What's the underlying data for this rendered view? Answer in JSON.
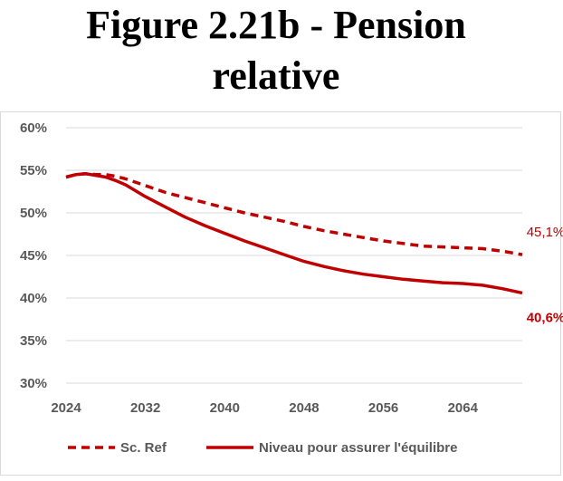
{
  "title": {
    "line1": "Figure 2.21b - Pension",
    "line2": "relative"
  },
  "chart_data": {
    "type": "line",
    "title": "Figure 2.21b - Pension relative",
    "xlabel": "",
    "ylabel": "",
    "xlim": [
      2024,
      2070
    ],
    "ylim": [
      30,
      60
    ],
    "x_ticks": [
      2024,
      2032,
      2040,
      2048,
      2056,
      2064
    ],
    "x_tick_labels": [
      "2024",
      "2032",
      "2040",
      "2048",
      "2056",
      "2064"
    ],
    "y_ticks": [
      30,
      35,
      40,
      45,
      50,
      55,
      60
    ],
    "y_tick_labels": [
      "30%",
      "35%",
      "40%",
      "45%",
      "50%",
      "55%",
      "60%"
    ],
    "legend_position": "bottom",
    "series": [
      {
        "name": "Sc. Ref",
        "style": "dashed",
        "color": "#c00000",
        "end_label": "45,1%",
        "x": [
          2024,
          2025,
          2026,
          2027,
          2028,
          2029,
          2030,
          2032,
          2034,
          2036,
          2038,
          2040,
          2042,
          2044,
          2046,
          2048,
          2050,
          2052,
          2054,
          2056,
          2058,
          2060,
          2062,
          2064,
          2066,
          2068,
          2070
        ],
        "values": [
          54.2,
          54.5,
          54.6,
          54.5,
          54.5,
          54.3,
          54.0,
          53.2,
          52.4,
          51.8,
          51.2,
          50.6,
          50.0,
          49.5,
          49.0,
          48.4,
          47.9,
          47.5,
          47.1,
          46.7,
          46.4,
          46.1,
          46.0,
          45.9,
          45.8,
          45.5,
          45.1
        ]
      },
      {
        "name": "Niveau pour assurer l'équilibre",
        "style": "solid",
        "color": "#c00000",
        "end_label": "40,6%",
        "x": [
          2024,
          2025,
          2026,
          2027,
          2028,
          2029,
          2030,
          2032,
          2034,
          2036,
          2038,
          2040,
          2042,
          2044,
          2046,
          2048,
          2050,
          2052,
          2054,
          2056,
          2058,
          2060,
          2062,
          2064,
          2066,
          2068,
          2070
        ],
        "values": [
          54.2,
          54.5,
          54.6,
          54.4,
          54.2,
          53.8,
          53.3,
          51.9,
          50.7,
          49.5,
          48.5,
          47.6,
          46.7,
          45.9,
          45.1,
          44.3,
          43.7,
          43.2,
          42.8,
          42.5,
          42.2,
          42.0,
          41.8,
          41.7,
          41.5,
          41.1,
          40.6
        ]
      }
    ]
  }
}
